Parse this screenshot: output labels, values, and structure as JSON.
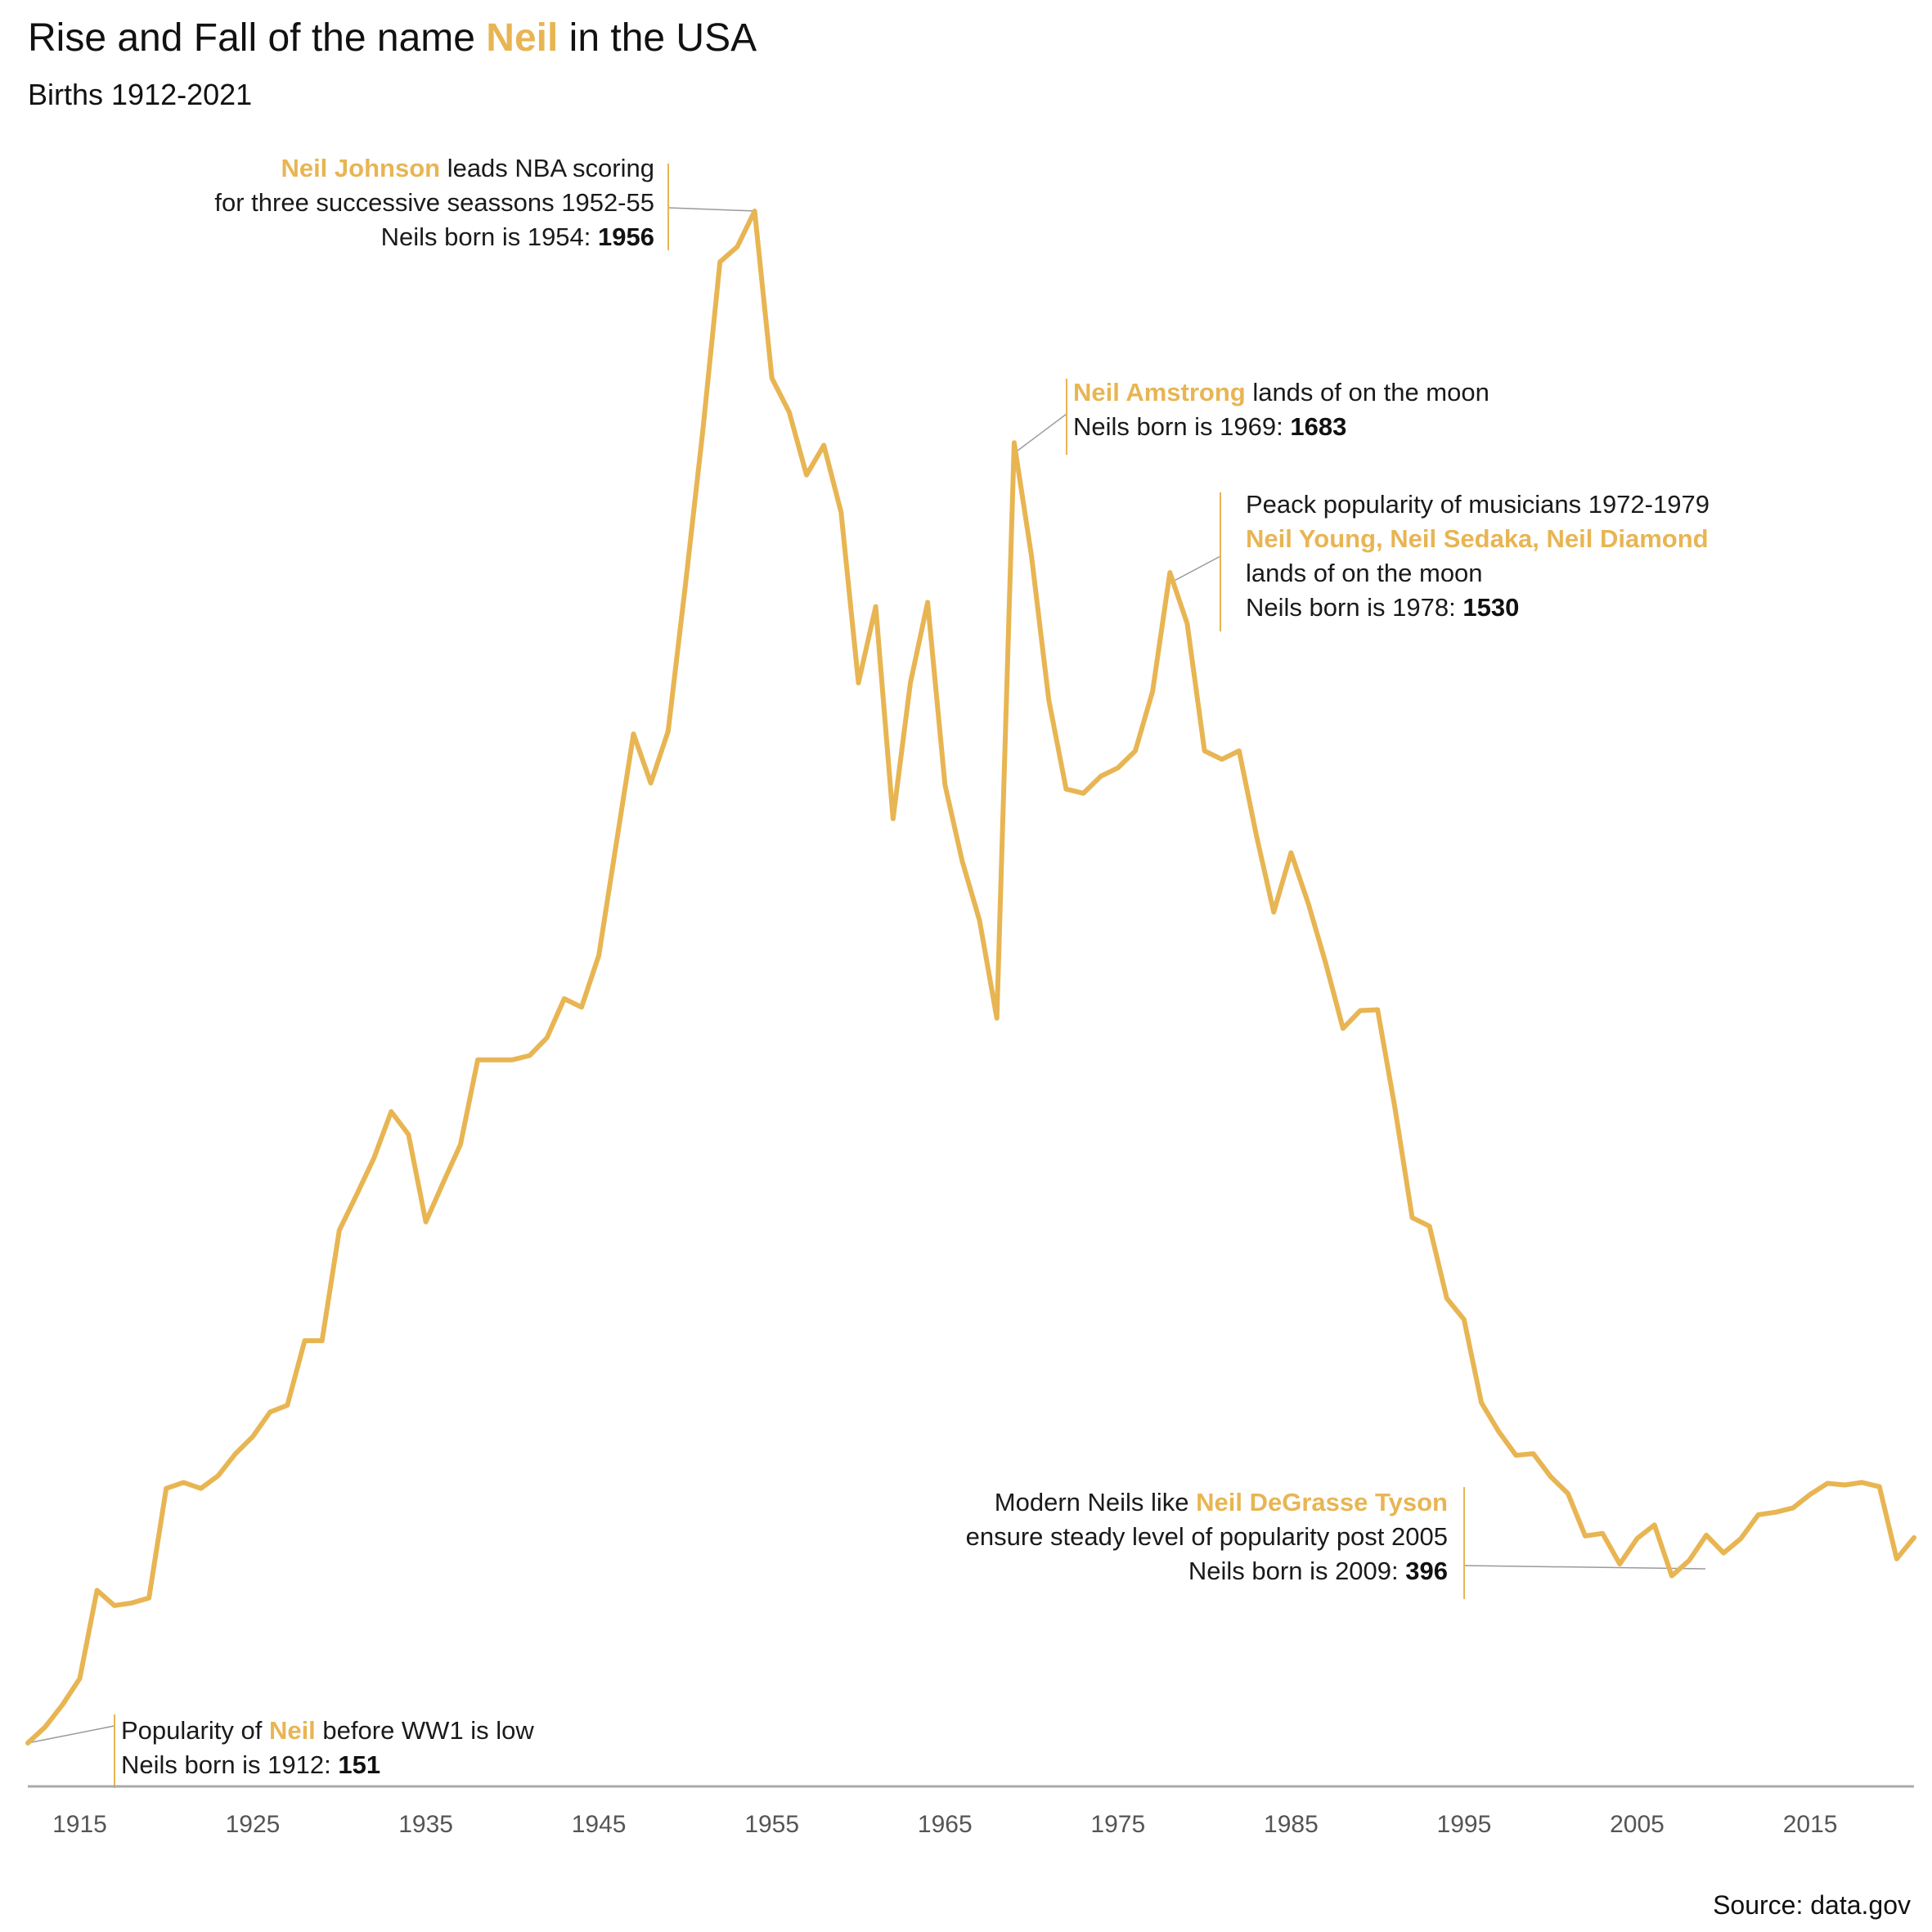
{
  "header": {
    "title_before": "Rise and Fall of the name ",
    "title_highlight": "Neil",
    "title_after": " in the USA",
    "subtitle": "Births 1912-2021"
  },
  "source": "Source: data.gov",
  "colors": {
    "accent": "#e8b553",
    "axis": "#aaaaaa",
    "leader": "#9a9a9a",
    "text": "#111111"
  },
  "annotations": [
    {
      "id": "ww1",
      "year": 1912,
      "lines": [
        [
          {
            "t": "Popularity of "
          },
          {
            "t": "Neil",
            "s": "hl"
          },
          {
            "t": " before WW1 is low"
          }
        ],
        [
          {
            "t": "Neils born is 1912: "
          },
          {
            "t": "151",
            "s": "bold"
          }
        ]
      ]
    },
    {
      "id": "johnson",
      "year": 1954,
      "lines": [
        [
          {
            "t": "Neil Johnson",
            "s": "hl"
          },
          {
            "t": " leads NBA scoring"
          }
        ],
        [
          {
            "t": "for three successive seassons 1952-55"
          }
        ],
        [
          {
            "t": "Neils born is 1954: "
          },
          {
            "t": "1956",
            "s": "bold"
          }
        ]
      ]
    },
    {
      "id": "armstrong",
      "year": 1969,
      "lines": [
        [
          {
            "t": "Neil Amstrong",
            "s": "hl"
          },
          {
            "t": " lands of on the moon"
          }
        ],
        [
          {
            "t": "Neils born is 1969: "
          },
          {
            "t": "1683",
            "s": "bold"
          }
        ]
      ]
    },
    {
      "id": "musicians",
      "year": 1978,
      "lines": [
        [
          {
            "t": "Peack popularity of musicians 1972-1979"
          }
        ],
        [
          {
            "t": "Neil Young, Neil Sedaka, Neil Diamond",
            "s": "hl"
          }
        ],
        [
          {
            "t": "lands of on the moon"
          }
        ],
        [
          {
            "t": "Neils born is 1978: "
          },
          {
            "t": "1530",
            "s": "bold"
          }
        ]
      ]
    },
    {
      "id": "tyson",
      "year": 2009,
      "lines": [
        [
          {
            "t": "Modern Neils like "
          },
          {
            "t": "Neil DeGrasse Tyson ",
            "s": "hl"
          }
        ],
        [
          {
            "t": "ensure steady level of popularity post 2005"
          }
        ],
        [
          {
            "t": "Neils born is 2009: "
          },
          {
            "t": "396",
            "s": "bold"
          }
        ]
      ]
    }
  ],
  "chart_data": {
    "type": "line",
    "title": "Rise and Fall of the name Neil in the USA",
    "subtitle": "Births 1912-2021",
    "xlabel": "",
    "ylabel": "",
    "xlim": [
      1912,
      2021
    ],
    "ylim": [
      151,
      1956
    ],
    "x_ticks": [
      1915,
      1925,
      1935,
      1945,
      1955,
      1965,
      1975,
      1985,
      1995,
      2005,
      2015
    ],
    "grid": false,
    "legend": "none",
    "series": [
      {
        "x": [
          1912,
          1913,
          1914,
          1915,
          1916,
          1917,
          1918,
          1919,
          1920,
          1921,
          1922,
          1923,
          1924,
          1925,
          1926,
          1927,
          1928,
          1929,
          1930,
          1931,
          1932,
          1933,
          1934,
          1935,
          1936,
          1937,
          1938,
          1939,
          1940,
          1941,
          1942,
          1943,
          1944,
          1945,
          1946,
          1947,
          1948,
          1949,
          1950,
          1951,
          1952,
          1953,
          1954,
          1955,
          1956,
          1957,
          1958,
          1959,
          1960,
          1961,
          1962,
          1963,
          1964,
          1965,
          1966,
          1967,
          1968,
          1969,
          1970,
          1971,
          1972,
          1973,
          1974,
          1975,
          1976,
          1977,
          1978,
          1979,
          1980,
          1981,
          1982,
          1983,
          1984,
          1985,
          1986,
          1987,
          1988,
          1989,
          1990,
          1991,
          1992,
          1993,
          1994,
          1995,
          1996,
          1997,
          1998,
          1999,
          2000,
          2001,
          2002,
          2003,
          2004,
          2005,
          2006,
          2007,
          2008,
          2009,
          2010,
          2011,
          2012,
          2013,
          2014,
          2015,
          2016,
          2017,
          2018,
          2019,
          2020,
          2021
        ],
        "values": [
          151,
          170,
          196,
          227,
          331,
          313,
          316,
          322,
          451,
          458,
          451,
          466,
          492,
          512,
          541,
          549,
          625,
          625,
          755,
          797,
          840,
          895,
          868,
          765,
          811,
          856,
          956,
          956,
          956,
          961,
          982,
          1028,
          1018,
          1079,
          1210,
          1340,
          1282,
          1343,
          1515,
          1696,
          1896,
          1914,
          1956,
          1759,
          1719,
          1645,
          1680,
          1601,
          1400,
          1490,
          1240,
          1400,
          1495,
          1280,
          1190,
          1120,
          1005,
          1683,
          1550,
          1380,
          1275,
          1270,
          1290,
          1300,
          1320,
          1390,
          1530,
          1470,
          1320,
          1310,
          1320,
          1220,
          1130,
          1200,
          1140,
          1070,
          993,
          1014,
          1015,
          900,
          770,
          760,
          675,
          650,
          552,
          518,
          490,
          492,
          465,
          445,
          395,
          398,
          362,
          392,
          408,
          348,
          366,
          396,
          375,
          392,
          420,
          423,
          428,
          444,
          457,
          455,
          458,
          453,
          368,
          393
        ]
      }
    ]
  }
}
